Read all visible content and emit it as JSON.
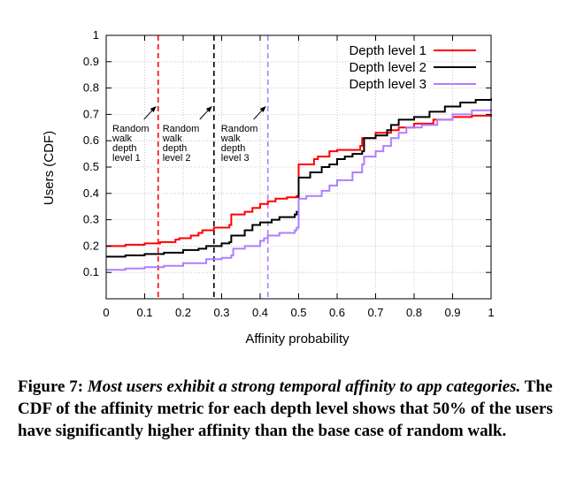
{
  "caption": {
    "figure_label": "Figure 7:",
    "emphasis": "Most users exhibit a strong temporal affinity to app categories.",
    "body": "The CDF of the affinity metric for each depth level shows that 50% of the users have significantly higher affinity than the base case of random walk."
  },
  "chart_data": {
    "type": "line",
    "title": "",
    "xlabel": "Affinity probability",
    "ylabel": "Users (CDF)",
    "xlim": [
      0,
      1
    ],
    "ylim": [
      0,
      1
    ],
    "xticks": [
      "0",
      "0.1",
      "0.2",
      "0.3",
      "0.4",
      "0.5",
      "0.6",
      "0.7",
      "0.8",
      "0.9",
      "1"
    ],
    "yticks": [
      "0.1",
      "0.2",
      "0.3",
      "0.4",
      "0.5",
      "0.6",
      "0.7",
      "0.8",
      "0.9",
      "1"
    ],
    "grid": true,
    "legend_position": "top-right",
    "series": [
      {
        "name": "Depth level 1",
        "color": "#ff0000",
        "points": [
          [
            0,
            0.2
          ],
          [
            0.05,
            0.205
          ],
          [
            0.1,
            0.21
          ],
          [
            0.14,
            0.215
          ],
          [
            0.18,
            0.225
          ],
          [
            0.19,
            0.23
          ],
          [
            0.22,
            0.24
          ],
          [
            0.24,
            0.25
          ],
          [
            0.25,
            0.26
          ],
          [
            0.28,
            0.27
          ],
          [
            0.32,
            0.28
          ],
          [
            0.325,
            0.32
          ],
          [
            0.36,
            0.33
          ],
          [
            0.38,
            0.345
          ],
          [
            0.4,
            0.36
          ],
          [
            0.42,
            0.37
          ],
          [
            0.44,
            0.38
          ],
          [
            0.47,
            0.385
          ],
          [
            0.495,
            0.39
          ],
          [
            0.5,
            0.51
          ],
          [
            0.54,
            0.53
          ],
          [
            0.55,
            0.54
          ],
          [
            0.58,
            0.56
          ],
          [
            0.6,
            0.565
          ],
          [
            0.66,
            0.58
          ],
          [
            0.665,
            0.61
          ],
          [
            0.7,
            0.63
          ],
          [
            0.74,
            0.64
          ],
          [
            0.76,
            0.65
          ],
          [
            0.8,
            0.665
          ],
          [
            0.85,
            0.68
          ],
          [
            0.9,
            0.69
          ],
          [
            0.95,
            0.695
          ],
          [
            1.0,
            0.7
          ]
        ]
      },
      {
        "name": "Depth level 2",
        "color": "#000000",
        "points": [
          [
            0,
            0.16
          ],
          [
            0.05,
            0.165
          ],
          [
            0.1,
            0.17
          ],
          [
            0.15,
            0.175
          ],
          [
            0.2,
            0.185
          ],
          [
            0.24,
            0.19
          ],
          [
            0.26,
            0.2
          ],
          [
            0.3,
            0.21
          ],
          [
            0.32,
            0.215
          ],
          [
            0.325,
            0.24
          ],
          [
            0.36,
            0.26
          ],
          [
            0.38,
            0.28
          ],
          [
            0.4,
            0.29
          ],
          [
            0.43,
            0.3
          ],
          [
            0.45,
            0.31
          ],
          [
            0.49,
            0.32
          ],
          [
            0.495,
            0.33
          ],
          [
            0.5,
            0.46
          ],
          [
            0.53,
            0.48
          ],
          [
            0.56,
            0.5
          ],
          [
            0.58,
            0.51
          ],
          [
            0.6,
            0.53
          ],
          [
            0.62,
            0.54
          ],
          [
            0.64,
            0.55
          ],
          [
            0.665,
            0.56
          ],
          [
            0.67,
            0.61
          ],
          [
            0.7,
            0.62
          ],
          [
            0.73,
            0.64
          ],
          [
            0.74,
            0.66
          ],
          [
            0.76,
            0.68
          ],
          [
            0.8,
            0.69
          ],
          [
            0.84,
            0.71
          ],
          [
            0.88,
            0.73
          ],
          [
            0.92,
            0.745
          ],
          [
            0.96,
            0.755
          ],
          [
            1.0,
            0.76
          ]
        ]
      },
      {
        "name": "Depth level 3",
        "color": "#b07eff",
        "points": [
          [
            0,
            0.11
          ],
          [
            0.05,
            0.115
          ],
          [
            0.1,
            0.12
          ],
          [
            0.15,
            0.125
          ],
          [
            0.2,
            0.135
          ],
          [
            0.26,
            0.15
          ],
          [
            0.3,
            0.155
          ],
          [
            0.325,
            0.165
          ],
          [
            0.33,
            0.19
          ],
          [
            0.36,
            0.2
          ],
          [
            0.4,
            0.22
          ],
          [
            0.41,
            0.23
          ],
          [
            0.42,
            0.24
          ],
          [
            0.45,
            0.25
          ],
          [
            0.49,
            0.26
          ],
          [
            0.495,
            0.27
          ],
          [
            0.5,
            0.38
          ],
          [
            0.52,
            0.39
          ],
          [
            0.56,
            0.41
          ],
          [
            0.58,
            0.43
          ],
          [
            0.6,
            0.45
          ],
          [
            0.64,
            0.48
          ],
          [
            0.665,
            0.51
          ],
          [
            0.67,
            0.54
          ],
          [
            0.7,
            0.56
          ],
          [
            0.72,
            0.58
          ],
          [
            0.74,
            0.61
          ],
          [
            0.76,
            0.63
          ],
          [
            0.78,
            0.65
          ],
          [
            0.82,
            0.66
          ],
          [
            0.86,
            0.68
          ],
          [
            0.9,
            0.7
          ],
          [
            0.95,
            0.715
          ],
          [
            1.0,
            0.72
          ]
        ]
      }
    ],
    "reference_lines": [
      {
        "x": 0.135,
        "color": "#ff0000",
        "label": [
          "Random",
          "walk",
          "depth",
          "level 1"
        ]
      },
      {
        "x": 0.28,
        "color": "#000000",
        "label": [
          "Random",
          "walk",
          "depth",
          "level 2"
        ]
      },
      {
        "x": 0.42,
        "color": "#b07eff",
        "label": [
          "Random",
          "walk",
          "depth",
          "level 3"
        ]
      }
    ]
  }
}
